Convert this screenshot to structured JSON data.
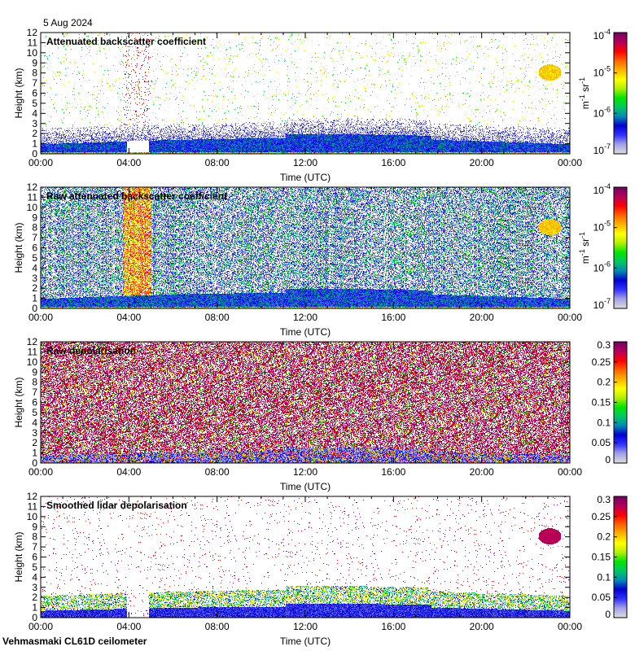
{
  "date": "5 Aug 2024",
  "footer": "Vehmasmaki CL61D ceilometer",
  "colors": {
    "colormap": [
      "#dcdcdc",
      "#a0a0e8",
      "#3030ff",
      "#0000d0",
      "#008cb4",
      "#00c864",
      "#00e600",
      "#b4f000",
      "#ffff00",
      "#ffb400",
      "#ff6400",
      "#ff0000",
      "#b4005a",
      "#780064"
    ]
  },
  "chart_data": [
    {
      "type": "heatmap",
      "title": "Attenuated backscatter coefficient",
      "xlabel": "Time (UTC)",
      "ylabel": "Height (km)",
      "xlim": [
        0,
        24
      ],
      "ylim": [
        0,
        12
      ],
      "xticks": [
        "00:00",
        "04:00",
        "08:00",
        "12:00",
        "16:00",
        "20:00",
        "00:00"
      ],
      "yticks": [
        "0",
        "1",
        "2",
        "3",
        "4",
        "5",
        "6",
        "7",
        "8",
        "9",
        "10",
        "11",
        "12"
      ],
      "colorbar": {
        "scale": "log",
        "range": [
          1e-07,
          0.0001
        ],
        "ticks": [
          [
            "10",
            "-7"
          ],
          [
            "10",
            "-6"
          ],
          [
            "10",
            "-5"
          ],
          [
            "10",
            "-4"
          ]
        ],
        "label": [
          "m",
          "-1",
          " sr",
          "-1"
        ]
      },
      "mode": "bsc"
    },
    {
      "type": "heatmap",
      "title": "Raw attenuated backscatter coefficient",
      "xlabel": "Time (UTC)",
      "ylabel": "Height (km)",
      "xlim": [
        0,
        24
      ],
      "ylim": [
        0,
        12
      ],
      "xticks": [
        "00:00",
        "04:00",
        "08:00",
        "12:00",
        "16:00",
        "20:00",
        "00:00"
      ],
      "yticks": [
        "0",
        "1",
        "2",
        "3",
        "4",
        "5",
        "6",
        "7",
        "8",
        "9",
        "10",
        "11",
        "12"
      ],
      "colorbar": {
        "scale": "log",
        "range": [
          1e-07,
          0.0001
        ],
        "ticks": [
          [
            "10",
            "-7"
          ],
          [
            "10",
            "-6"
          ],
          [
            "10",
            "-5"
          ],
          [
            "10",
            "-4"
          ]
        ],
        "label": [
          "m",
          "-1",
          " sr",
          "-1"
        ]
      },
      "mode": "rawbsc"
    },
    {
      "type": "heatmap",
      "title": "Raw depolarisation",
      "xlabel": "Time (UTC)",
      "ylabel": "Height (km)",
      "xlim": [
        0,
        24
      ],
      "ylim": [
        0,
        12
      ],
      "xticks": [
        "00:00",
        "04:00",
        "08:00",
        "12:00",
        "16:00",
        "20:00",
        "00:00"
      ],
      "yticks": [
        "0",
        "1",
        "2",
        "3",
        "4",
        "5",
        "6",
        "7",
        "8",
        "9",
        "10",
        "11",
        "12"
      ],
      "colorbar": {
        "scale": "linear",
        "range": [
          0,
          0.3
        ],
        "ticks": [
          [
            "0"
          ],
          [
            "0.05"
          ],
          [
            "0.1"
          ],
          [
            "0.15"
          ],
          [
            "0.2"
          ],
          [
            "0.25"
          ],
          [
            "0.3"
          ]
        ]
      },
      "mode": "rawdep"
    },
    {
      "type": "heatmap",
      "title": "Smoothed lidar depolarisation",
      "xlabel": "Time (UTC)",
      "ylabel": "Height (km)",
      "xlim": [
        0,
        24
      ],
      "ylim": [
        0,
        12
      ],
      "xticks": [
        "00:00",
        "04:00",
        "08:00",
        "12:00",
        "16:00",
        "20:00",
        "00:00"
      ],
      "yticks": [
        "0",
        "1",
        "2",
        "3",
        "4",
        "5",
        "6",
        "7",
        "8",
        "9",
        "10",
        "11",
        "12"
      ],
      "colorbar": {
        "scale": "linear",
        "range": [
          0,
          0.3
        ],
        "ticks": [
          [
            "0"
          ],
          [
            "0.05"
          ],
          [
            "0.1"
          ],
          [
            "0.15"
          ],
          [
            "0.2"
          ],
          [
            "0.25"
          ],
          [
            "0.3"
          ]
        ]
      },
      "mode": "dep"
    }
  ]
}
